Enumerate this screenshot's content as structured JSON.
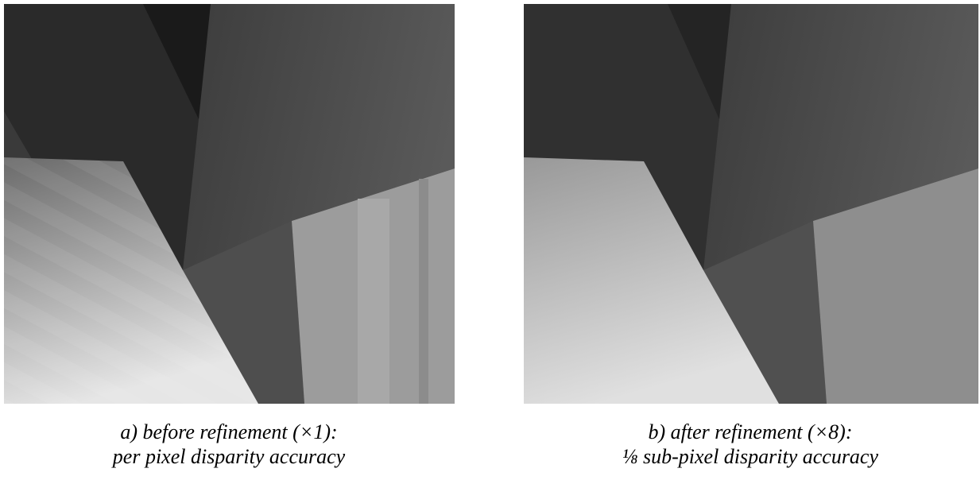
{
  "figures": [
    {
      "caption_lines": [
        "a) before refinement  (×1):",
        "per pixel disparity accuracy"
      ]
    },
    {
      "caption_lines": [
        "b) after refinement (×8):",
        "⅛  sub-pixel disparity accuracy"
      ]
    }
  ]
}
